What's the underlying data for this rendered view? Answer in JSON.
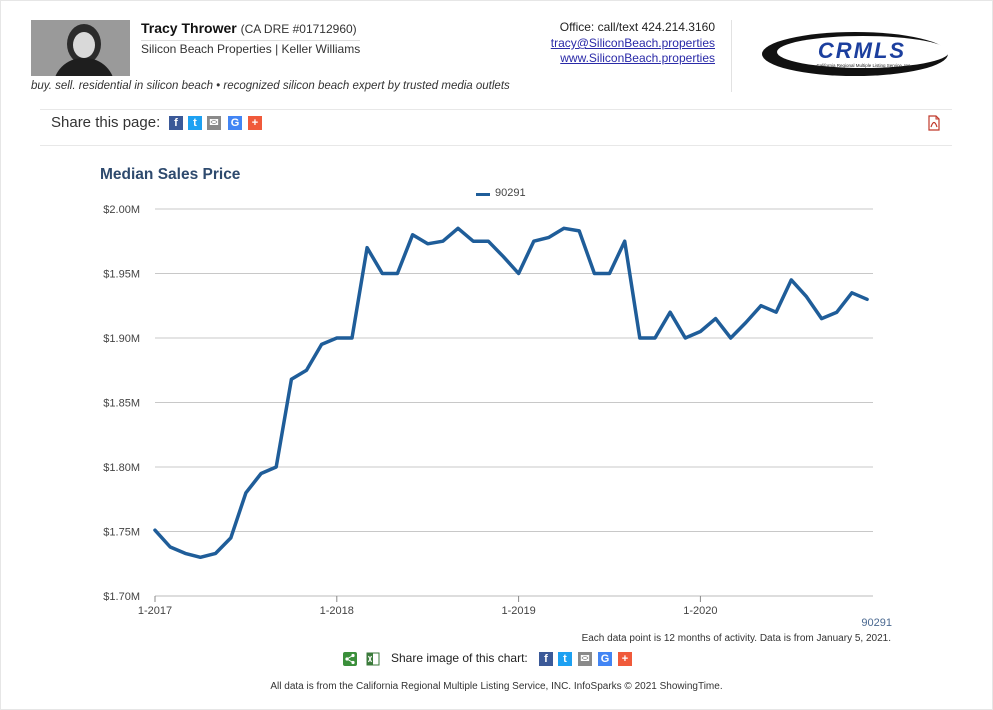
{
  "header": {
    "agent_name": "Tracy Thrower",
    "license": "(CA DRE #01712960)",
    "company": "Silicon Beach Properties | Keller Williams",
    "office": "Office: call/text 424.214.3160",
    "email": "tracy@SiliconBeach.properties",
    "website": "www.SiliconBeach.properties",
    "tagline": "buy. sell. residential in silicon beach • recognized silicon beach expert by trusted media outlets",
    "logo_text": "CRMLS",
    "logo_subtext": "California Regional Multiple Listing Service, Inc."
  },
  "share": {
    "label": "Share this page:",
    "icons": [
      "facebook-icon",
      "twitter-icon",
      "email-icon",
      "google-icon",
      "plus-icon"
    ],
    "image_label": "Share image of this chart:"
  },
  "chart_data": {
    "type": "line",
    "title": "Median Sales Price",
    "series": [
      {
        "name": "90291",
        "color": "#1f5d99",
        "values": [
          1.751,
          1.738,
          1.733,
          1.73,
          1.733,
          1.745,
          1.78,
          1.795,
          1.8,
          1.868,
          1.875,
          1.895,
          1.9,
          1.9,
          1.97,
          1.95,
          1.95,
          1.98,
          1.973,
          1.975,
          1.985,
          1.975,
          1.975,
          1.963,
          1.95,
          1.975,
          1.978,
          1.985,
          1.983,
          1.95,
          1.95,
          1.975,
          1.9,
          1.9,
          1.92,
          1.9,
          1.905,
          1.915,
          1.9,
          1.912,
          1.925,
          1.92,
          1.945,
          1.932,
          1.915,
          1.92,
          1.935,
          1.93
        ]
      }
    ],
    "x_start": "1-2017",
    "x_tick_labels": [
      "1-2017",
      "1-2018",
      "1-2019",
      "1-2020"
    ],
    "y_tick_labels": [
      "$1.70M",
      "$1.75M",
      "$1.80M",
      "$1.85M",
      "$1.90M",
      "$1.95M",
      "$2.00M"
    ],
    "y_ticks": [
      1.7,
      1.75,
      1.8,
      1.85,
      1.9,
      1.95,
      2.0
    ],
    "ylim": [
      1.7,
      2.0
    ],
    "grid": true,
    "legend": "top-center"
  },
  "notes": {
    "series_tag": "90291",
    "activity_note": "Each data point is 12 months of activity. Data is from January 5, 2021.",
    "footer": "All data is from the California Regional Multiple Listing Service, INC. InfoSparks © 2021 ShowingTime."
  },
  "colors": {
    "line": "#1f5d99",
    "title": "#2e4a6e",
    "grid": "#c8c8c8"
  }
}
